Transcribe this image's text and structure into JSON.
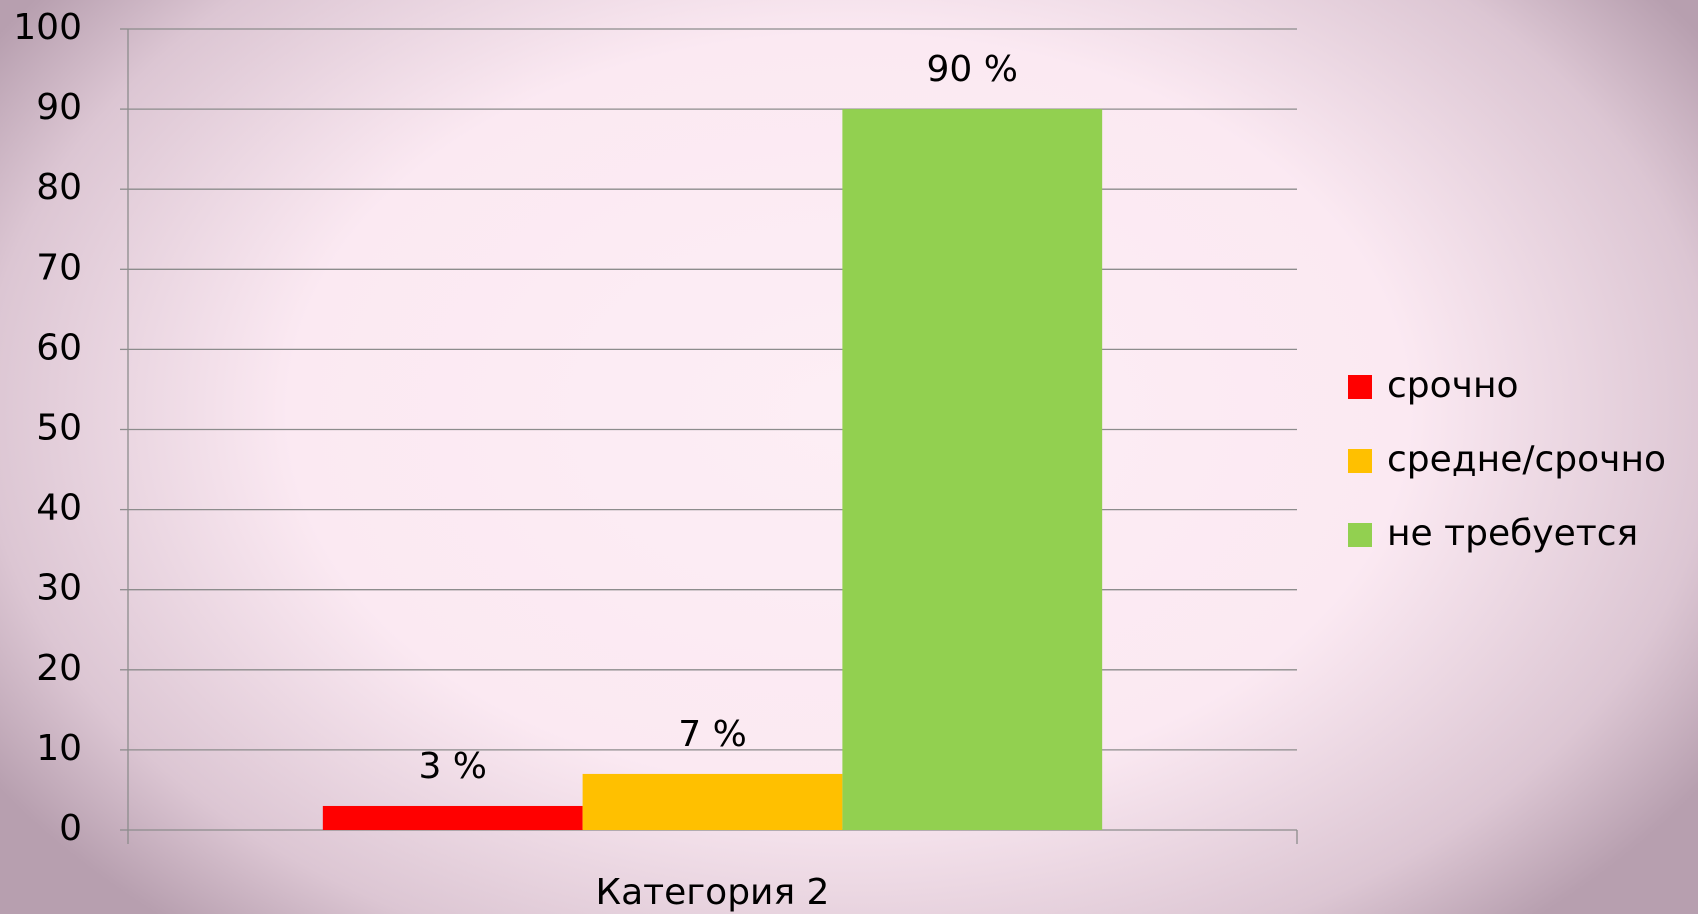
{
  "chart_data": {
    "type": "bar",
    "categories": [
      "Категория 2"
    ],
    "series": [
      {
        "name": "срочно",
        "color": "#ff0000",
        "values": [
          3
        ],
        "value_labels": [
          "3 %"
        ]
      },
      {
        "name": "средне/срочно",
        "color": "#ffc000",
        "values": [
          7
        ],
        "value_labels": [
          "7 %"
        ]
      },
      {
        "name": "не требуется",
        "color": "#92d050",
        "values": [
          90
        ],
        "value_labels": [
          "90 %"
        ]
      }
    ],
    "ylim": [
      0,
      100
    ],
    "yticks": [
      0,
      10,
      20,
      30,
      40,
      50,
      60,
      70,
      80,
      90,
      100
    ],
    "grid": true,
    "legend": "right"
  }
}
